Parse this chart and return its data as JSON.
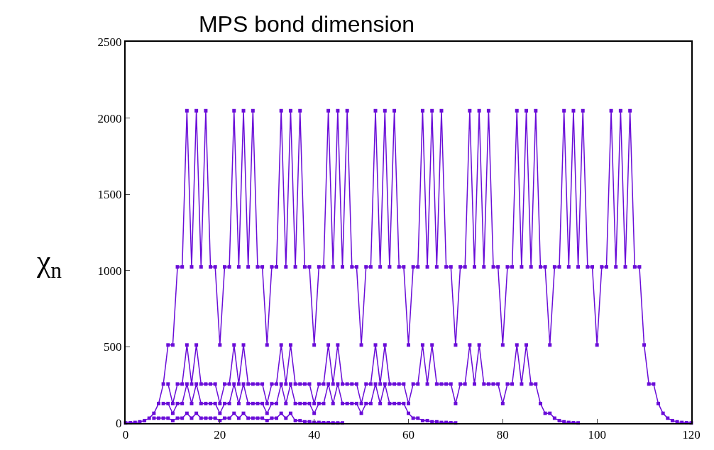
{
  "chart_data": {
    "type": "line",
    "title": "MPS bond dimension",
    "ylabel": "χ$_{n}$",
    "xlim": [
      0,
      120
    ],
    "xticks": [
      0,
      20,
      40,
      60,
      80,
      100,
      120
    ],
    "ylim": [
      0,
      2500
    ],
    "yticks": [
      0,
      500,
      1000,
      1500,
      2000,
      2500
    ],
    "marker": "square",
    "line_style": "solid",
    "series": [
      {
        "color": "#6a0dd8",
        "x": [
          0,
          1,
          2,
          3,
          4,
          5,
          6,
          7,
          8,
          9,
          10,
          11,
          12,
          13,
          14,
          15,
          16,
          17,
          18,
          19,
          20,
          21,
          22,
          23,
          24,
          25,
          26,
          27,
          28,
          29,
          30,
          31,
          32,
          33,
          34,
          35,
          36,
          37,
          38,
          39,
          40,
          41,
          42,
          43,
          44,
          45,
          46,
          47,
          48,
          49,
          50,
          51,
          52,
          53,
          54,
          55,
          56,
          57,
          58,
          59,
          60,
          61,
          62,
          63,
          64,
          65,
          66,
          67,
          68,
          69,
          70,
          71,
          72,
          73,
          74,
          75,
          76,
          77,
          78,
          79,
          80,
          81,
          82,
          83,
          84,
          85,
          86,
          87,
          88,
          89,
          90,
          91,
          92,
          93,
          94,
          95,
          96,
          97,
          98,
          99,
          100,
          101,
          102,
          103,
          104,
          105,
          106,
          107,
          108,
          109,
          110,
          111,
          112,
          113,
          114,
          115,
          116,
          117,
          118,
          119,
          120
        ],
        "values": [
          1,
          2,
          4,
          8,
          16,
          32,
          64,
          128,
          256,
          512,
          512,
          1024,
          1024,
          2048,
          1024,
          2048,
          1024,
          2048,
          1024,
          1024,
          512,
          1024,
          1024,
          2048,
          1024,
          2048,
          1024,
          2048,
          1024,
          1024,
          512,
          1024,
          1024,
          2048,
          1024,
          2048,
          1024,
          2048,
          1024,
          1024,
          512,
          1024,
          1024,
          2048,
          1024,
          2048,
          1024,
          2048,
          1024,
          1024,
          512,
          1024,
          1024,
          2048,
          1024,
          2048,
          1024,
          2048,
          1024,
          1024,
          512,
          1024,
          1024,
          2048,
          1024,
          2048,
          1024,
          2048,
          1024,
          1024,
          512,
          1024,
          1024,
          2048,
          1024,
          2048,
          1024,
          2048,
          1024,
          1024,
          512,
          1024,
          1024,
          2048,
          1024,
          2048,
          1024,
          2048,
          1024,
          1024,
          512,
          1024,
          1024,
          2048,
          1024,
          2048,
          1024,
          2048,
          1024,
          1024,
          512,
          1024,
          1024,
          2048,
          1024,
          2048,
          1024,
          2048,
          1024,
          1024,
          512,
          256,
          256,
          128,
          64,
          32,
          16,
          8,
          4,
          2,
          1
        ]
      },
      {
        "color": "#6a0dd8",
        "x": [
          9,
          10,
          11,
          12,
          13,
          14,
          15,
          16,
          17,
          18,
          19,
          20,
          21,
          22,
          23,
          24,
          25,
          26,
          27,
          28,
          29,
          30,
          31,
          32,
          33,
          34,
          35,
          36,
          37,
          38,
          39,
          40,
          41,
          42,
          43,
          44,
          45,
          46,
          47,
          48,
          49,
          50,
          51,
          52,
          53,
          54,
          55,
          56,
          57,
          58,
          59,
          60,
          61,
          62,
          63,
          64,
          65,
          66,
          67,
          68,
          69,
          70,
          71,
          72,
          73,
          74,
          75,
          76,
          77,
          78,
          79,
          80,
          81,
          82,
          83,
          84,
          85,
          86,
          87,
          88,
          89,
          90,
          91,
          92,
          93,
          94,
          95,
          96
        ],
        "values": [
          256,
          128,
          256,
          256,
          512,
          256,
          512,
          256,
          256,
          256,
          256,
          128,
          256,
          256,
          512,
          256,
          512,
          256,
          256,
          256,
          256,
          128,
          256,
          256,
          512,
          256,
          512,
          256,
          256,
          256,
          256,
          128,
          256,
          256,
          512,
          256,
          512,
          256,
          256,
          256,
          256,
          128,
          256,
          256,
          512,
          256,
          512,
          256,
          256,
          256,
          256,
          128,
          256,
          256,
          512,
          256,
          512,
          256,
          256,
          256,
          256,
          128,
          256,
          256,
          512,
          256,
          512,
          256,
          256,
          256,
          256,
          128,
          256,
          256,
          512,
          256,
          512,
          256,
          256,
          128,
          64,
          64,
          32,
          16,
          8,
          4,
          2,
          1
        ]
      },
      {
        "color": "#6a0dd8",
        "x": [
          8,
          9,
          10,
          11,
          12,
          13,
          14,
          15,
          16,
          17,
          18,
          19,
          20,
          21,
          22,
          23,
          24,
          25,
          26,
          27,
          28,
          29,
          30,
          31,
          32,
          33,
          34,
          35,
          36,
          37,
          38,
          39,
          40,
          41,
          42,
          43,
          44,
          45,
          46,
          47,
          48,
          49,
          50,
          51,
          52,
          53,
          54,
          55,
          56,
          57,
          58,
          59,
          60,
          61,
          62,
          63,
          64,
          65,
          66,
          67,
          68,
          69,
          70
        ],
        "values": [
          128,
          128,
          64,
          128,
          128,
          256,
          128,
          256,
          128,
          128,
          128,
          128,
          64,
          128,
          128,
          256,
          128,
          256,
          128,
          128,
          128,
          128,
          64,
          128,
          128,
          256,
          128,
          256,
          128,
          128,
          128,
          128,
          64,
          128,
          128,
          256,
          128,
          256,
          128,
          128,
          128,
          128,
          64,
          128,
          128,
          256,
          128,
          256,
          128,
          128,
          128,
          128,
          64,
          32,
          32,
          16,
          16,
          8,
          8,
          4,
          4,
          2,
          1
        ]
      },
      {
        "color": "#6a0dd8",
        "x": [
          6,
          7,
          8,
          9,
          10,
          11,
          12,
          13,
          14,
          15,
          16,
          17,
          18,
          19,
          20,
          21,
          22,
          23,
          24,
          25,
          26,
          27,
          28,
          29,
          30,
          31,
          32,
          33,
          34,
          35,
          36,
          37,
          38,
          39,
          40,
          41,
          42,
          43,
          44,
          45,
          46
        ],
        "values": [
          32,
          32,
          32,
          32,
          16,
          32,
          32,
          64,
          32,
          64,
          32,
          32,
          32,
          32,
          16,
          32,
          32,
          64,
          32,
          64,
          32,
          32,
          32,
          32,
          16,
          32,
          32,
          64,
          32,
          64,
          16,
          16,
          8,
          8,
          4,
          4,
          2,
          2,
          1,
          1,
          1
        ]
      }
    ]
  }
}
